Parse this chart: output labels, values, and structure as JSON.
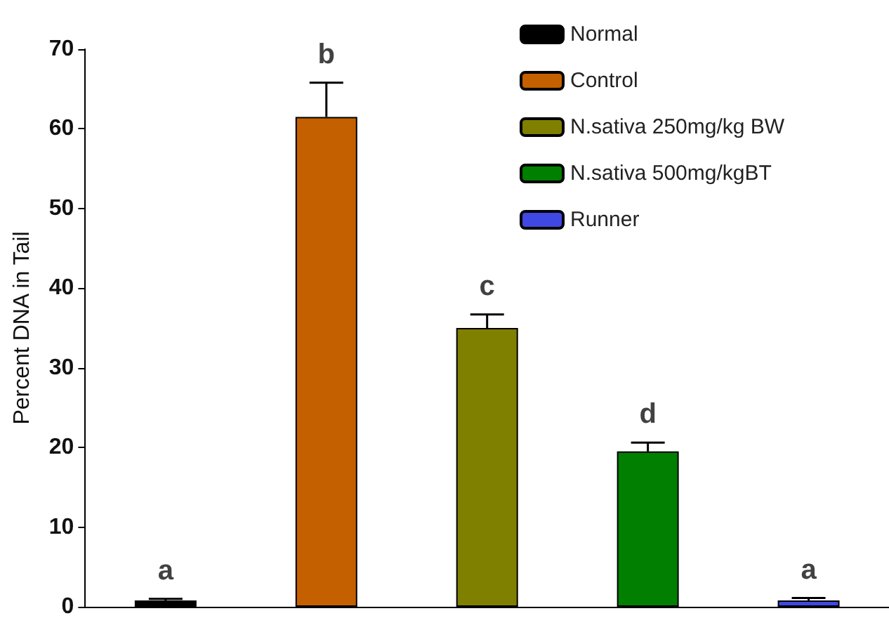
{
  "chart_data": {
    "type": "bar",
    "ylabel": "Percent DNA in Tail",
    "categories": [
      null,
      null,
      null,
      null,
      null
    ],
    "series": [
      {
        "name": "Normal",
        "color": "#000000",
        "values": [
          0.8,
          null,
          null,
          null,
          null
        ],
        "errors": [
          0.2,
          null,
          null,
          null,
          null
        ]
      },
      {
        "name": "Control",
        "color": "#c46000",
        "values": [
          null,
          61.5,
          null,
          null,
          null
        ],
        "errors": [
          null,
          4.3,
          null,
          null,
          null
        ]
      },
      {
        "name": "N.sativa 250mg/kg BW",
        "color": "#7f7f00",
        "values": [
          null,
          null,
          35,
          null,
          null
        ],
        "errors": [
          null,
          null,
          1.7,
          null,
          null
        ]
      },
      {
        "name": "N.sativa 500mg/kgBT",
        "color": "#007f00",
        "values": [
          null,
          null,
          null,
          19.5,
          null
        ],
        "errors": [
          null,
          null,
          null,
          1.1,
          null
        ]
      },
      {
        "name": "Runner",
        "color": "#3f48e0",
        "values": [
          null,
          null,
          null,
          null,
          0.8
        ],
        "errors": [
          null,
          null,
          null,
          null,
          0.3
        ]
      }
    ],
    "annotations": [
      "a",
      "b",
      "c",
      "d",
      "a"
    ],
    "ylim": [
      0,
      70
    ],
    "yticks": [
      0,
      10,
      20,
      30,
      40,
      50,
      60,
      70
    ],
    "grid": false,
    "legend": "top right"
  }
}
